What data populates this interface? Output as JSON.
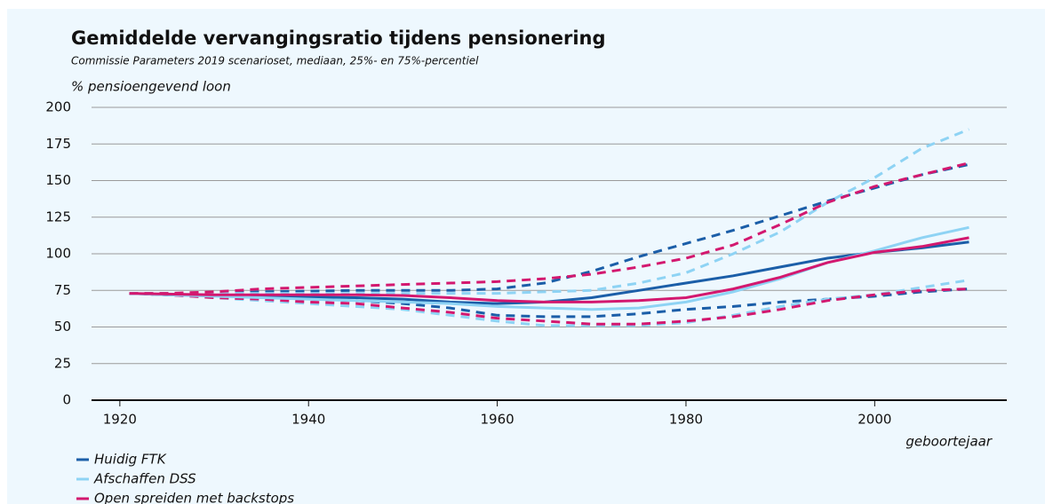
{
  "chart_data": {
    "type": "line",
    "title": "Gemiddelde vervangingsratio tijdens pensionering",
    "subtitle": "Commissie Parameters 2019 scenarioset, mediaan, 25%- en 75%-percentiel",
    "y_label": "% pensioengevend loon",
    "x_label": "geboortejaar",
    "x": [
      1921,
      1925,
      1930,
      1935,
      1940,
      1945,
      1950,
      1955,
      1960,
      1965,
      1970,
      1975,
      1980,
      1985,
      1990,
      1995,
      2000,
      2005,
      2010
    ],
    "xlim": [
      1917,
      2014
    ],
    "xticks": [
      1920,
      1940,
      1960,
      1980,
      2000
    ],
    "ylim": [
      0,
      200
    ],
    "yticks": [
      0,
      25,
      50,
      75,
      100,
      125,
      150,
      175,
      200
    ],
    "grid": true,
    "series": [
      {
        "name": "Huidig FTK",
        "color": "#1b5ea8",
        "values": [
          73,
          72,
          71.5,
          71,
          70.5,
          70,
          69,
          67,
          66,
          67,
          70,
          75,
          80,
          85,
          91,
          97,
          101,
          104,
          108
        ],
        "p75": [
          73,
          73,
          73,
          74,
          74.5,
          75,
          75,
          75,
          76,
          80,
          88,
          98,
          107,
          116,
          126,
          136,
          145,
          154,
          161
        ],
        "p25": [
          73,
          72,
          71,
          70,
          69,
          68,
          66,
          63,
          58,
          57,
          57,
          59,
          62,
          64,
          67,
          69,
          71,
          74,
          76
        ]
      },
      {
        "name": "Afschaffen DSS",
        "color": "#8ed3f4",
        "values": [
          73,
          72,
          71,
          70,
          69,
          68,
          67,
          66,
          64,
          63,
          62,
          63,
          67,
          74,
          83,
          94,
          102,
          111,
          118
        ],
        "p75": [
          73,
          73,
          73,
          73,
          73,
          73,
          73,
          73,
          73,
          74,
          75,
          80,
          87,
          100,
          115,
          135,
          152,
          172,
          185
        ],
        "p25": [
          73,
          72,
          70,
          68,
          66,
          64,
          62,
          58,
          54,
          51,
          51,
          51,
          53,
          58,
          64,
          69,
          72,
          77,
          82
        ]
      },
      {
        "name": "Open spreiden met backstops",
        "color": "#d3186f",
        "values": [
          73,
          72.5,
          72,
          72,
          72,
          72,
          71.5,
          70,
          68,
          67,
          67,
          68,
          70,
          76,
          84,
          94,
          101,
          105,
          111
        ],
        "p75": [
          73,
          73,
          74,
          76,
          77,
          78,
          79,
          80,
          81,
          83,
          86,
          91,
          97,
          106,
          120,
          135,
          146,
          154,
          162
        ],
        "p25": [
          73,
          72,
          70,
          69,
          67,
          66,
          63,
          60,
          56,
          54,
          52,
          52,
          54,
          57,
          62,
          68,
          72,
          75,
          76
        ]
      }
    ]
  }
}
